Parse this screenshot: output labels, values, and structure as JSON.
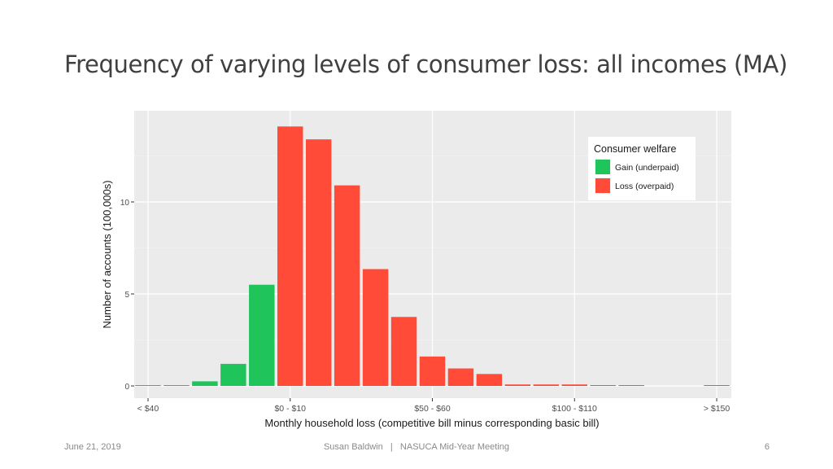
{
  "slide": {
    "title": "Frequency of varying levels of consumer loss: all incomes (MA)",
    "footer_date": "June 21, 2019",
    "footer_center": "Susan Baldwin   |   NASUCA Mid-Year Meeting",
    "page_number": "6"
  },
  "colors": {
    "gain": "#1fc45b",
    "loss": "#ff4b38",
    "panel": "#ebebeb",
    "grid": "#ffffff"
  },
  "chart_data": {
    "type": "bar",
    "xlabel": "Monthly household loss (competitive bill minus corresponding basic bill)",
    "ylabel": "Number of accounts (100,000s)",
    "ylim": [
      0,
      14.5
    ],
    "yticks": [
      0,
      5,
      10
    ],
    "bin_count": 21,
    "xtick_labels": [
      {
        "bin": 0,
        "label": "< $40"
      },
      {
        "bin": 5,
        "label": "$0 - $10"
      },
      {
        "bin": 10,
        "label": "$50 - $60"
      },
      {
        "bin": 15,
        "label": "$100 - $110"
      },
      {
        "bin": 20,
        "label": "> $150"
      }
    ],
    "bars": [
      {
        "bin": 0,
        "value": 0.03,
        "group": "gain"
      },
      {
        "bin": 1,
        "value": 0.03,
        "group": "gain"
      },
      {
        "bin": 2,
        "value": 0.25,
        "group": "gain"
      },
      {
        "bin": 3,
        "value": 1.2,
        "group": "gain"
      },
      {
        "bin": 4,
        "value": 5.5,
        "group": "gain"
      },
      {
        "bin": 5,
        "value": 14.1,
        "group": "loss"
      },
      {
        "bin": 6,
        "value": 13.4,
        "group": "loss"
      },
      {
        "bin": 7,
        "value": 10.9,
        "group": "loss"
      },
      {
        "bin": 8,
        "value": 6.35,
        "group": "loss"
      },
      {
        "bin": 9,
        "value": 3.75,
        "group": "loss"
      },
      {
        "bin": 10,
        "value": 1.6,
        "group": "loss"
      },
      {
        "bin": 11,
        "value": 0.95,
        "group": "loss"
      },
      {
        "bin": 12,
        "value": 0.65,
        "group": "loss"
      },
      {
        "bin": 13,
        "value": 0.08,
        "group": "loss"
      },
      {
        "bin": 14,
        "value": 0.08,
        "group": "loss"
      },
      {
        "bin": 15,
        "value": 0.08,
        "group": "loss"
      },
      {
        "bin": 16,
        "value": 0.04,
        "group": "loss"
      },
      {
        "bin": 17,
        "value": 0.04,
        "group": "loss"
      },
      {
        "bin": 20,
        "value": 0.04,
        "group": "loss"
      }
    ],
    "legend": {
      "title": "Consumer welfare",
      "placement": "top-right",
      "items": [
        {
          "key": "gain",
          "label": "Gain (underpaid)"
        },
        {
          "key": "loss",
          "label": "Loss (overpaid)"
        }
      ]
    },
    "grid": true
  }
}
